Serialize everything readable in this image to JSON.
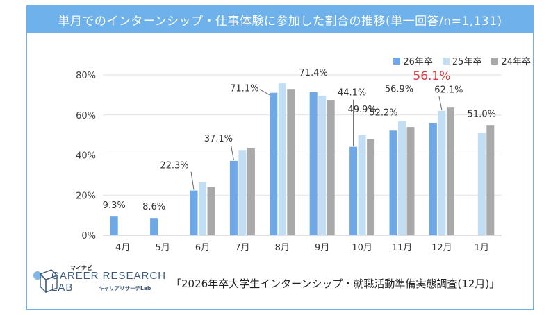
{
  "title": "単月でのインターンシップ・仕事体験に参加した割合の推移(単一回答/n=1,131)",
  "source": "「2026年卒大学生インターンシップ・就職活動準備実態調査(12月)」",
  "logo": {
    "brand_small": "マイナビ",
    "brand_line1": "CAREER RESEARCH",
    "brand_line2": "LAB",
    "brand_sub": "キャリアリサーチLab"
  },
  "colors": {
    "frame": "#6fb1ea",
    "series_26": "#6fa8e6",
    "series_25": "#c2def4",
    "series_24": "#a9a9a9",
    "highlight_label": "#e03a3a"
  },
  "chart_data": {
    "type": "bar",
    "categories": [
      "4月",
      "5月",
      "6月",
      "7月",
      "8月",
      "9月",
      "10月",
      "11月",
      "12月",
      "1月"
    ],
    "series": [
      {
        "name": "26年卒",
        "values": [
          9.3,
          8.6,
          22.3,
          37.1,
          71.1,
          71.4,
          44.1,
          52.2,
          56.1,
          null
        ]
      },
      {
        "name": "25年卒",
        "values": [
          null,
          null,
          26.5,
          42.5,
          75.8,
          69.5,
          49.9,
          56.9,
          62.1,
          51.0
        ]
      },
      {
        "name": "24年卒",
        "values": [
          null,
          null,
          24.0,
          43.5,
          73.0,
          67.5,
          48.0,
          54.0,
          64.0,
          55.0
        ]
      }
    ],
    "labels": [
      {
        "text": "9.3%",
        "cat": 0,
        "series": 0
      },
      {
        "text": "8.6%",
        "cat": 1,
        "series": 0
      },
      {
        "text": "22.3%",
        "cat": 2,
        "series": 0
      },
      {
        "text": "37.1%",
        "cat": 3,
        "series": 0
      },
      {
        "text": "71.1%",
        "cat": 4,
        "series": 0
      },
      {
        "text": "71.4%",
        "cat": 5,
        "series": 0
      },
      {
        "text": "44.1%",
        "cat": 6,
        "series": 0
      },
      {
        "text": "49.9%",
        "cat": 6,
        "series": 1
      },
      {
        "text": "52.2%",
        "cat": 7,
        "series": 0
      },
      {
        "text": "56.9%",
        "cat": 7,
        "series": 1
      },
      {
        "text": "56.1%",
        "cat": 8,
        "series": 0,
        "highlight": true
      },
      {
        "text": "62.1%",
        "cat": 8,
        "series": 1
      },
      {
        "text": "51.0%",
        "cat": 9,
        "series": 1
      }
    ],
    "yticks": [
      "0%",
      "20%",
      "40%",
      "60%",
      "80%"
    ],
    "ylim": [
      0,
      80
    ],
    "legend_position": "top-right",
    "grid": true
  }
}
